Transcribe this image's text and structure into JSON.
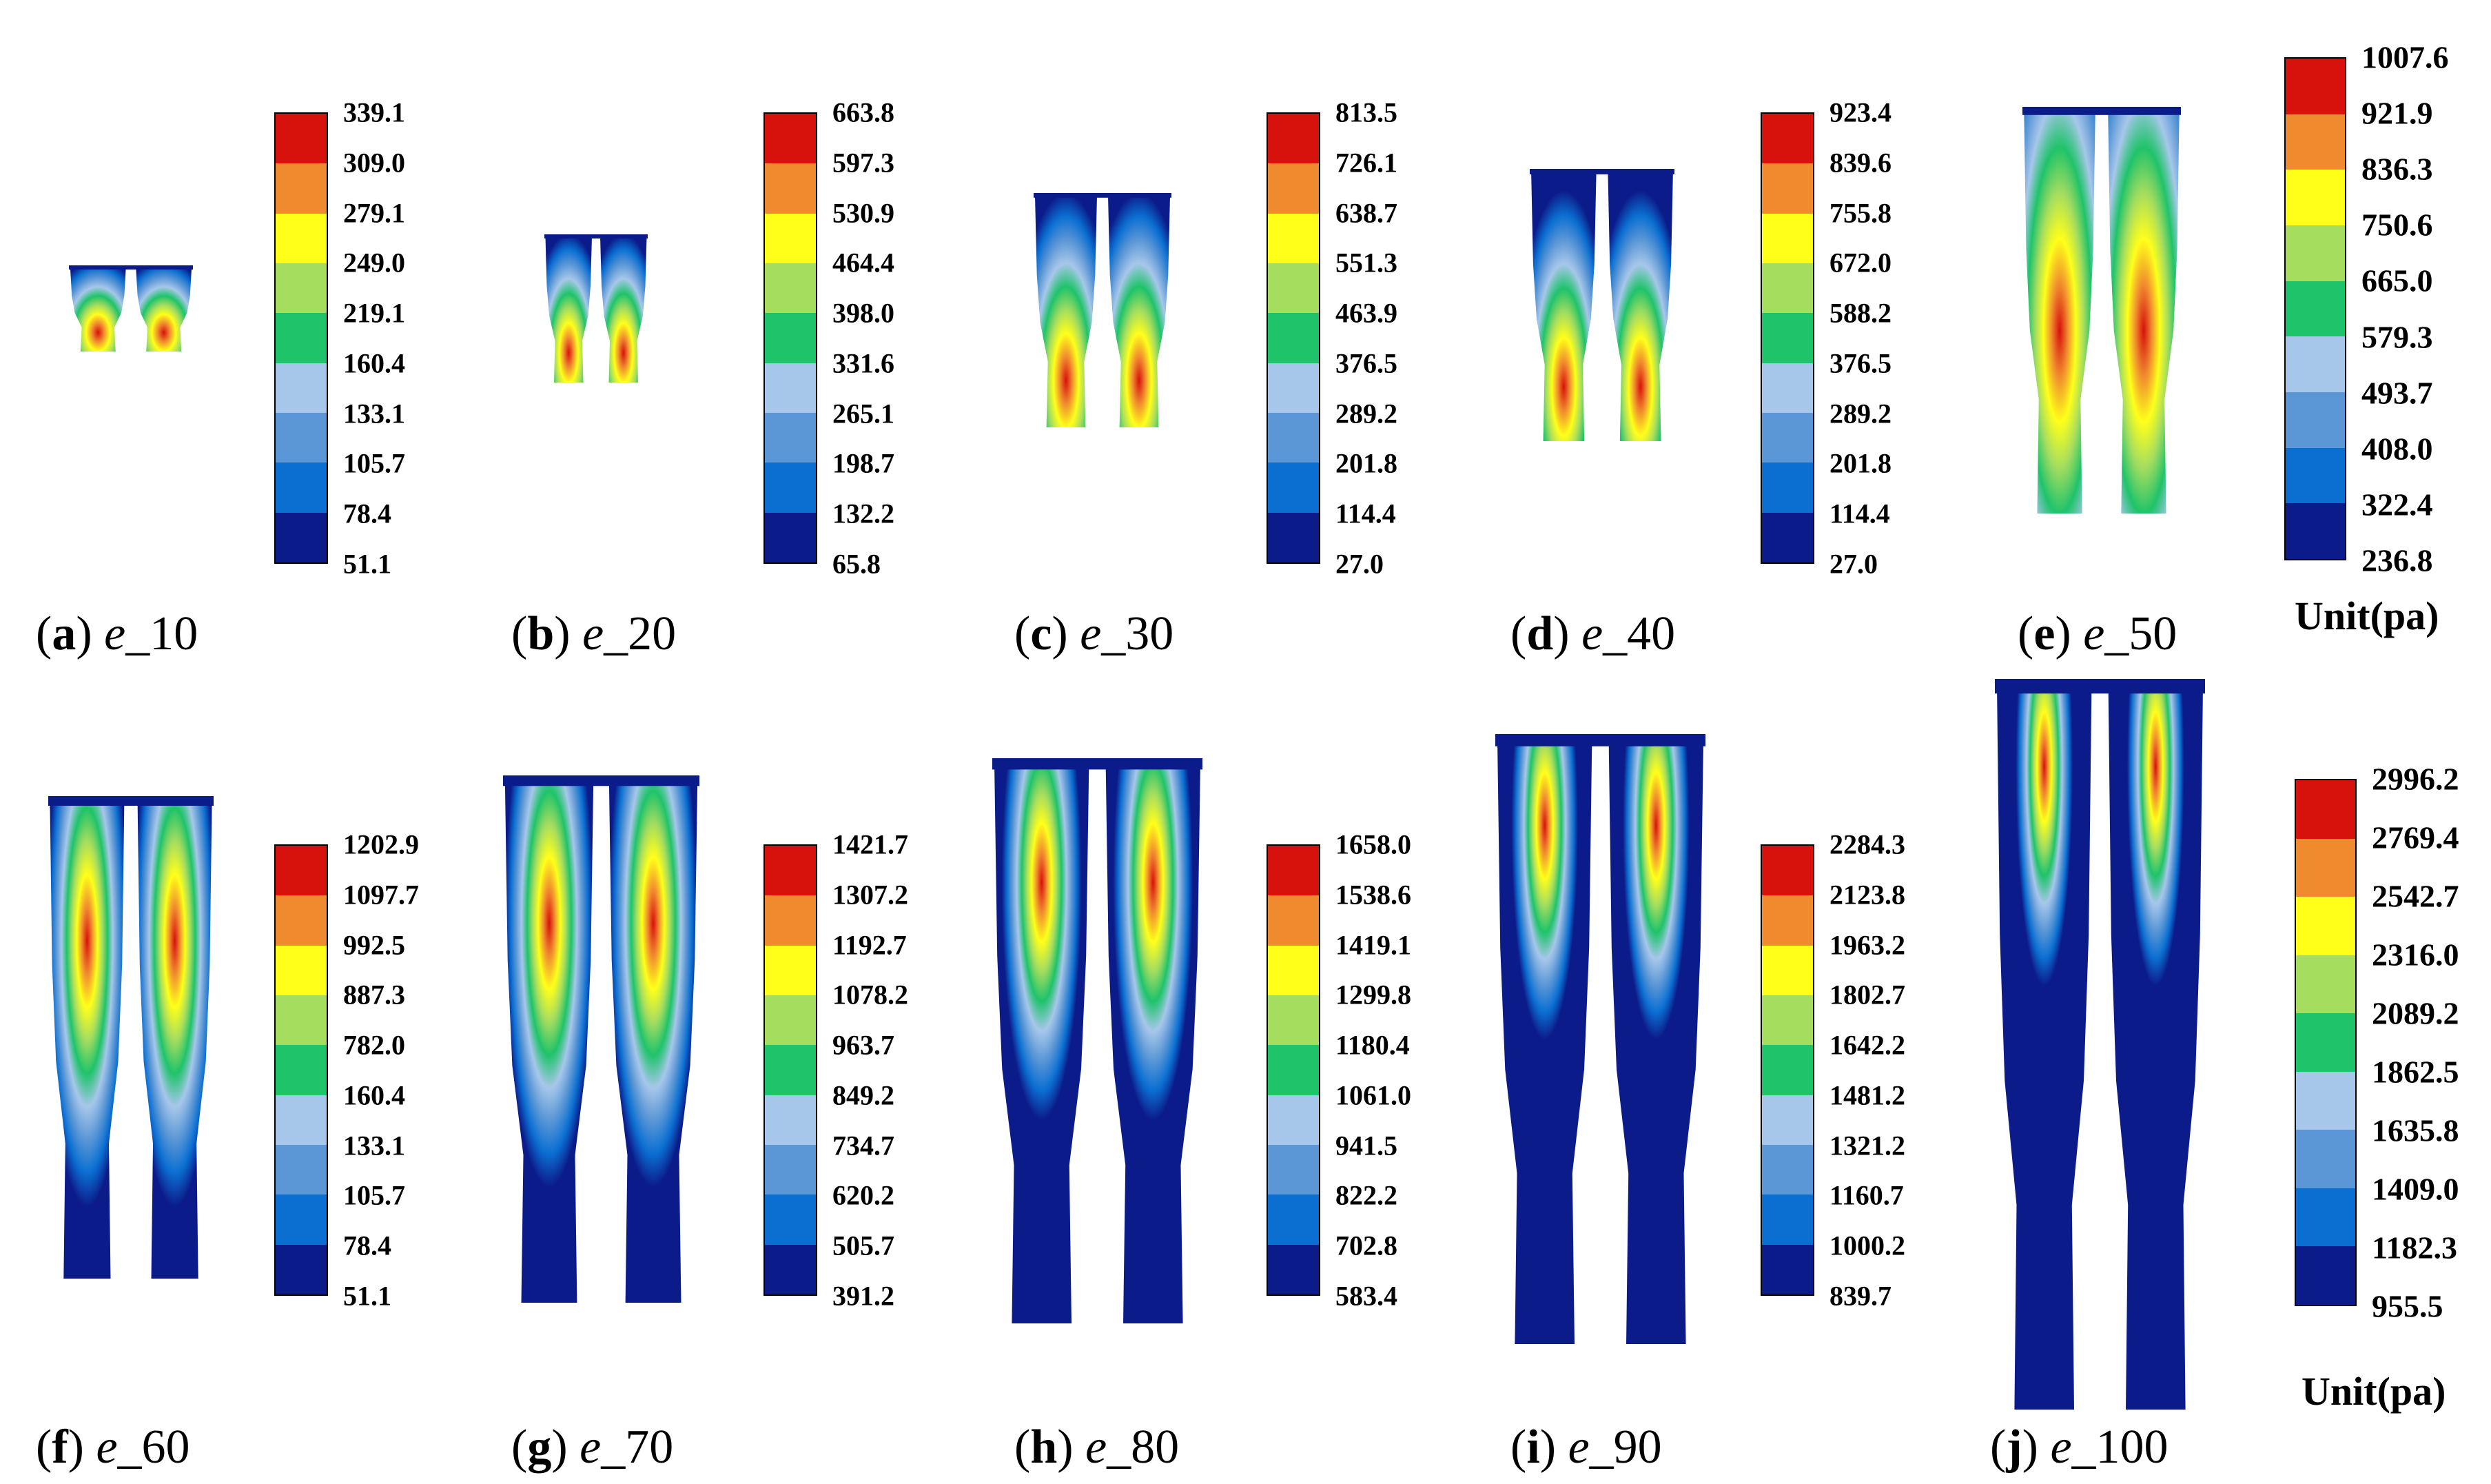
{
  "palette": [
    "#0b1c8a",
    "#0b6fd2",
    "#5b97d6",
    "#a7c7ea",
    "#1fc36a",
    "#a5dd5f",
    "#ffff1a",
    "#f08a2e",
    "#d7110c"
  ],
  "panels": [
    {
      "letter": "a",
      "var": "e",
      "suffix": "_10",
      "ticks": [
        "339.1",
        "309.0",
        "279.1",
        "249.0",
        "219.1",
        "160.4",
        "133.1",
        "105.7",
        "78.4",
        "51.1"
      ],
      "unit": ""
    },
    {
      "letter": "b",
      "var": "e",
      "suffix": "_20",
      "ticks": [
        "663.8",
        "597.3",
        "530.9",
        "464.4",
        "398.0",
        "331.6",
        "265.1",
        "198.7",
        "132.2",
        "65.8"
      ],
      "unit": ""
    },
    {
      "letter": "c",
      "var": "e",
      "suffix": "_30",
      "ticks": [
        "813.5",
        "726.1",
        "638.7",
        "551.3",
        "463.9",
        "376.5",
        "289.2",
        "201.8",
        "114.4",
        "27.0"
      ],
      "unit": ""
    },
    {
      "letter": "d",
      "var": "e",
      "suffix": "_40",
      "ticks": [
        "923.4",
        "839.6",
        "755.8",
        "672.0",
        "588.2",
        "376.5",
        "289.2",
        "201.8",
        "114.4",
        "27.0"
      ],
      "unit": ""
    },
    {
      "letter": "e",
      "var": "e",
      "suffix": "_50",
      "ticks": [
        "1007.6",
        "921.9",
        "836.3",
        "750.6",
        "665.0",
        "579.3",
        "493.7",
        "408.0",
        "322.4",
        "236.8"
      ],
      "unit": "Unit(pa)"
    },
    {
      "letter": "f",
      "var": "e",
      "suffix": "_60",
      "ticks": [
        "1202.9",
        "1097.7",
        "992.5",
        "887.3",
        "782.0",
        "160.4",
        "133.1",
        "105.7",
        "78.4",
        "51.1"
      ],
      "unit": ""
    },
    {
      "letter": "g",
      "var": "e",
      "suffix": "_70",
      "ticks": [
        "1421.7",
        "1307.2",
        "1192.7",
        "1078.2",
        "963.7",
        "849.2",
        "734.7",
        "620.2",
        "505.7",
        "391.2"
      ],
      "unit": ""
    },
    {
      "letter": "h",
      "var": "e",
      "suffix": "_80",
      "ticks": [
        "1658.0",
        "1538.6",
        "1419.1",
        "1299.8",
        "1180.4",
        "1061.0",
        "941.5",
        "822.2",
        "702.8",
        "583.4"
      ],
      "unit": ""
    },
    {
      "letter": "i",
      "var": "e",
      "suffix": "_90",
      "ticks": [
        "2284.3",
        "2123.8",
        "1963.2",
        "1802.7",
        "1642.2",
        "1481.2",
        "1321.2",
        "1160.7",
        "1000.2",
        "839.7"
      ],
      "unit": ""
    },
    {
      "letter": "j",
      "var": "e",
      "suffix": "_100",
      "ticks": [
        "2996.2",
        "2769.4",
        "2542.7",
        "2316.0",
        "2089.2",
        "1862.5",
        "1635.8",
        "1409.0",
        "1182.3",
        "955.5"
      ],
      "unit": "Unit(pa)"
    }
  ]
}
